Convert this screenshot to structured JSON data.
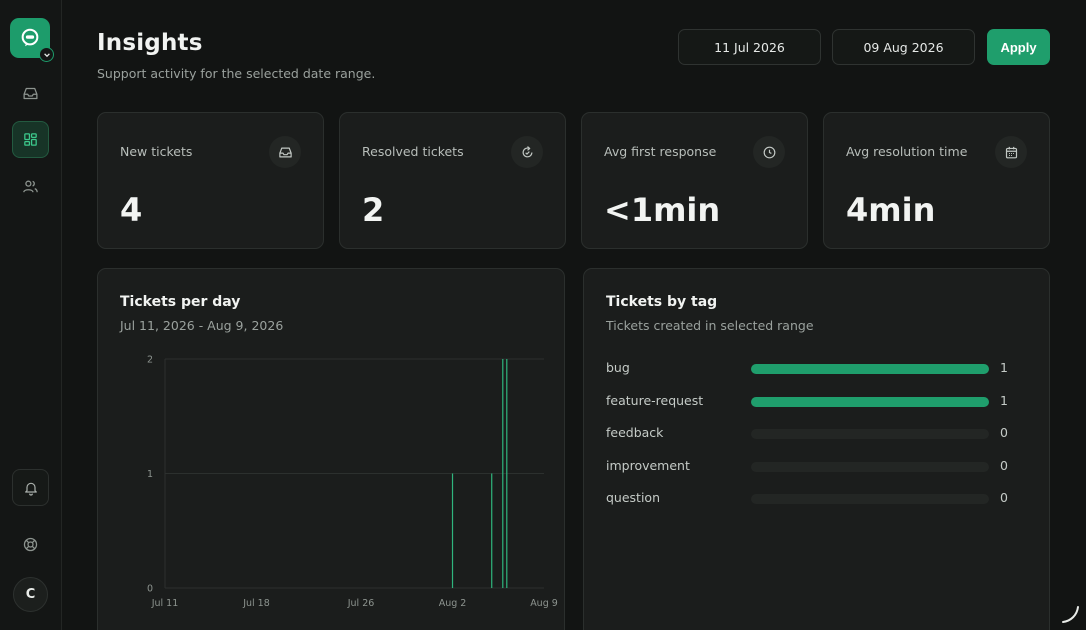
{
  "app": {
    "avatar_initial": "C"
  },
  "sidebar": {
    "items": [
      {
        "name": "inbox",
        "icon": "inbox-icon",
        "active": false
      },
      {
        "name": "dashboard",
        "icon": "dashboard-icon",
        "active": true
      },
      {
        "name": "users",
        "icon": "users-icon",
        "active": false
      }
    ],
    "bottom": [
      "bell-icon",
      "help-icon"
    ]
  },
  "header": {
    "title": "Insights",
    "subtitle": "Support activity for the selected date range.",
    "start_date": "11 Jul 2026",
    "end_date": "09 Aug 2026",
    "apply_label": "Apply"
  },
  "stats": [
    {
      "label": "New tickets",
      "value": "4",
      "icon": "inbox-icon"
    },
    {
      "label": "Resolved tickets",
      "value": "2",
      "icon": "resolve-icon"
    },
    {
      "label": "Avg first response",
      "value": "<1min",
      "icon": "clock-icon"
    },
    {
      "label": "Avg resolution time",
      "value": "4min",
      "icon": "calendar-icon"
    }
  ],
  "tickets_per_day": {
    "title": "Tickets per day",
    "subtitle": "Jul 11, 2026 - Aug 9, 2026"
  },
  "tickets_by_tag": {
    "title": "Tickets by tag",
    "subtitle": "Tickets created in selected range",
    "tags": [
      {
        "name": "bug",
        "count": "1",
        "value": 1
      },
      {
        "name": "feature-request",
        "count": "1",
        "value": 1
      },
      {
        "name": "feedback",
        "count": "0",
        "value": 0
      },
      {
        "name": "improvement",
        "count": "0",
        "value": 0
      },
      {
        "name": "question",
        "count": "0",
        "value": 0
      }
    ],
    "max": 1
  },
  "colors": {
    "accent": "#1f9e6c",
    "background": "#121413",
    "card": "#1b1d1c"
  },
  "chart_data": {
    "type": "bar",
    "x_type": "date",
    "x_range": [
      "2026-07-11",
      "2026-08-09"
    ],
    "x_tick_labels": [
      "Jul 11",
      "Jul 18",
      "Jul 26",
      "Aug 2",
      "Aug 9"
    ],
    "x_ticks": [
      "2026-07-11",
      "2026-07-18",
      "2026-07-26",
      "2026-08-02",
      "2026-08-09"
    ],
    "ylim": [
      0,
      2
    ],
    "y_ticks": [
      0,
      1,
      2
    ],
    "points": [
      {
        "x": "2026-08-02",
        "y": 1
      },
      {
        "x": "2026-08-05",
        "y": 1
      },
      {
        "x": "2026-08-06",
        "y": 2
      }
    ],
    "grid": true
  }
}
